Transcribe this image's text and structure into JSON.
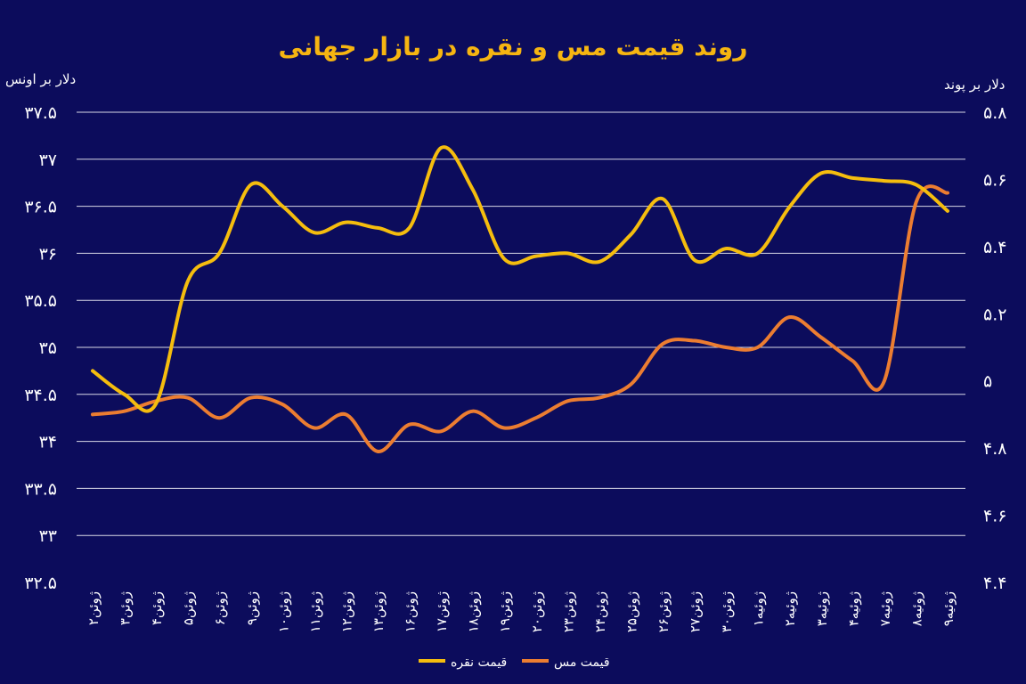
{
  "chart_data": {
    "type": "line",
    "title": "روند قیمت مس و نقره در بازار جهانی",
    "y_left_label": "دلار بر اونس",
    "y_right_label": "دلار بر پوند",
    "y_left_ticks": [
      "۳۷.۵",
      "۳۷",
      "۳۶.۵",
      "۳۶",
      "۳۵.۵",
      "۳۵",
      "۳۴.۵",
      "۳۴",
      "۳۳.۵",
      "۳۳",
      "۳۲.۵"
    ],
    "y_right_ticks": [
      "۵.۸",
      "۵.۶",
      "۵.۴",
      "۵.۲",
      "۵",
      "۴.۸",
      "۴.۶",
      "۴.۴"
    ],
    "y_left_range": [
      32.5,
      37.5
    ],
    "y_right_range": [
      4.4,
      5.8
    ],
    "grid": true,
    "legend_position": "bottom",
    "categories": [
      "۲ژوئن",
      "۳ژوئن",
      "۴ژوئن",
      "۵ژوئن",
      "۶ژوئن",
      "۹ژوئن",
      "۱۰ژوئن",
      "۱۱ژوئن",
      "۱۲ژوئن",
      "۱۳ژوئن",
      "۱۶ژوئن",
      "۱۷ژوئن",
      "۱۸ژوئن",
      "۱۹ژوئن",
      "۲۰ژوئن",
      "۲۳ژوئن",
      "۲۴ژوئن",
      "۲۵ژوئن",
      "۲۶ژوئن",
      "۲۷ژوئن",
      "۳۰ژوئن",
      "۱ژوئیه",
      "۲ژوئیه",
      "۳ژوئیه",
      "۴ژوئیه",
      "۷ژوئیه",
      "۸ژوئیه",
      "۹ژوئیه"
    ],
    "series": [
      {
        "name": "قیمت نقره",
        "axis": "left",
        "color": "#f5bd0e",
        "values": [
          34.75,
          34.5,
          34.4,
          35.7,
          36.0,
          36.73,
          36.5,
          36.22,
          36.33,
          36.27,
          36.27,
          37.12,
          36.68,
          35.94,
          35.97,
          36.0,
          35.91,
          36.2,
          36.58,
          35.93,
          36.05,
          36.0,
          36.49,
          36.85,
          36.8,
          36.77,
          36.73,
          36.45
        ]
      },
      {
        "name": "قیمت مس",
        "axis": "right",
        "color": "#ec7d31",
        "values": [
          4.9,
          4.91,
          4.94,
          4.95,
          4.89,
          4.95,
          4.93,
          4.86,
          4.9,
          4.79,
          4.87,
          4.85,
          4.91,
          4.86,
          4.89,
          4.94,
          4.95,
          4.99,
          5.11,
          5.12,
          5.1,
          5.1,
          5.19,
          5.13,
          5.06,
          5.0,
          5.53,
          5.56
        ]
      }
    ]
  }
}
